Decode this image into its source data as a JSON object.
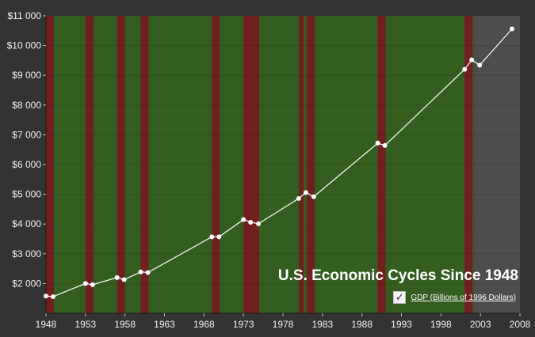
{
  "chart_data": {
    "type": "line",
    "title": "U.S. Economic Cycles Since 1948",
    "xlabel": "",
    "ylabel": "",
    "xlim": [
      1948,
      2008
    ],
    "ylim": [
      1000,
      11000
    ],
    "x_ticks": [
      1948,
      1953,
      1958,
      1963,
      1968,
      1973,
      1978,
      1983,
      1988,
      1993,
      1998,
      2003,
      2008
    ],
    "y_ticks": [
      2000,
      3000,
      4000,
      5000,
      6000,
      7000,
      8000,
      9000,
      10000,
      11000
    ],
    "y_tick_labels": [
      "$2 000",
      "$3 000",
      "$4 000",
      "$5 000",
      "$6 000",
      "$7 000",
      "$8 000",
      "$9 000",
      "$10 000",
      "$11 000"
    ],
    "x_tick_labels": [
      "1948",
      "1953",
      "1958",
      "1963",
      "1968",
      "1973",
      "1978",
      "1983",
      "1988",
      "1993",
      "1998",
      "2003",
      "2008"
    ],
    "series": [
      {
        "name": "GDP (Billions of 1996 Dollars)",
        "color": "#ffffff",
        "points": [
          {
            "x": 1948.0,
            "y": 1580
          },
          {
            "x": 1948.9,
            "y": 1560
          },
          {
            "x": 1953.0,
            "y": 2000
          },
          {
            "x": 1953.9,
            "y": 1960
          },
          {
            "x": 1957.0,
            "y": 2200
          },
          {
            "x": 1957.9,
            "y": 2130
          },
          {
            "x": 1960.0,
            "y": 2390
          },
          {
            "x": 1960.9,
            "y": 2370
          },
          {
            "x": 1969.0,
            "y": 3570
          },
          {
            "x": 1969.9,
            "y": 3570
          },
          {
            "x": 1973.0,
            "y": 4150
          },
          {
            "x": 1973.9,
            "y": 4060
          },
          {
            "x": 1974.9,
            "y": 4010
          },
          {
            "x": 1980.0,
            "y": 4860
          },
          {
            "x": 1980.9,
            "y": 5060
          },
          {
            "x": 1981.9,
            "y": 4920
          },
          {
            "x": 1990.0,
            "y": 6720
          },
          {
            "x": 1990.9,
            "y": 6640
          },
          {
            "x": 2001.0,
            "y": 9200
          },
          {
            "x": 2001.9,
            "y": 9520
          },
          {
            "x": 2002.9,
            "y": 9340
          },
          {
            "x": 2007.0,
            "y": 10560
          }
        ]
      }
    ],
    "expansion_color": "#335e1f",
    "recession_color": "#721f1f",
    "future_color": "#4d4d4d",
    "expansion_range": [
      1948,
      2002.2
    ],
    "future_range": [
      2002.2,
      2008
    ],
    "recessions": [
      {
        "start": 1948.0,
        "end": 1949.0
      },
      {
        "start": 1953.0,
        "end": 1954.0
      },
      {
        "start": 1957.0,
        "end": 1958.0
      },
      {
        "start": 1960.0,
        "end": 1961.0
      },
      {
        "start": 1969.0,
        "end": 1970.0
      },
      {
        "start": 1973.0,
        "end": 1975.0
      },
      {
        "start": 1980.0,
        "end": 1980.6
      },
      {
        "start": 1981.0,
        "end": 1982.0
      },
      {
        "start": 1990.0,
        "end": 1991.0
      },
      {
        "start": 2001.0,
        "end": 2002.0
      }
    ],
    "grid": true,
    "legend_position": "bottom-right"
  },
  "legend": {
    "label": "GDP (Billions of 1996 Dollars)",
    "checked_glyph": "✓"
  }
}
